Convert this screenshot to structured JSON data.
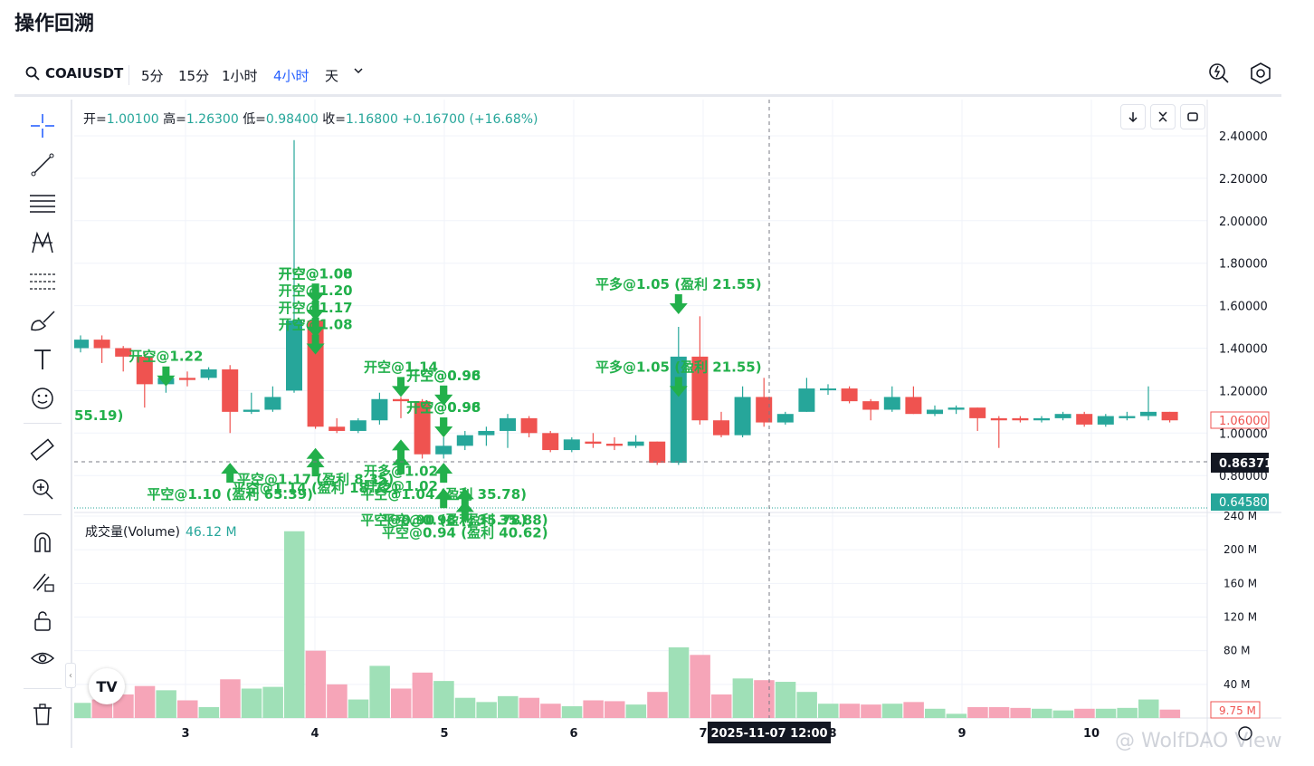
{
  "page_title": "操作回溯",
  "toolbar": {
    "symbol": "COAIUSDT",
    "timeframes": [
      "5分",
      "15分",
      "1小时",
      "4小时",
      "天"
    ],
    "active_timeframe": "4小时"
  },
  "legend": {
    "open_label": "开=",
    "open": "1.00100",
    "high_label": "高=",
    "high": "1.26300",
    "low_label": "低=",
    "low": "0.98400",
    "close_label": "收=",
    "close": "1.16800",
    "change": "+0.16700 (+16.68%)"
  },
  "volume_legend": {
    "label": "成交量(Volume)",
    "value": "46.12 M"
  },
  "price_scale": [
    "2.40000",
    "2.20000",
    "2.00000",
    "1.80000",
    "1.60000",
    "1.40000",
    "1.20000",
    "1.00000",
    "0.80000"
  ],
  "volume_scale": [
    "240 M",
    "200 M",
    "160 M",
    "120 M",
    "80 M",
    "40 M"
  ],
  "price_badges": {
    "last": "1.06000",
    "cursor": "0.86371",
    "low_line": "0.64580",
    "volume_last": "9.75 M"
  },
  "time_labels": [
    "3",
    "4",
    "5",
    "6",
    "7",
    "8",
    "9",
    "10"
  ],
  "cursor_time": "2025-11-07    12:00",
  "watermark": "@ WolfDAO View",
  "tv_logo": "TV",
  "colors": {
    "up": "#26a69a",
    "down": "#ef5350",
    "vol_up": "#9fe0b7",
    "vol_down": "#f6a5b8",
    "marker": "#22b04b",
    "accent": "#2962ff"
  },
  "chart_data": {
    "type": "candlestick",
    "candles": [
      {
        "o": 1.4,
        "h": 1.46,
        "l": 1.38,
        "c": 1.44,
        "v": 18
      },
      {
        "o": 1.44,
        "h": 1.46,
        "l": 1.33,
        "c": 1.4,
        "v": 22
      },
      {
        "o": 1.4,
        "h": 1.41,
        "l": 1.29,
        "c": 1.36,
        "v": 28
      },
      {
        "o": 1.36,
        "h": 1.38,
        "l": 1.12,
        "c": 1.23,
        "v": 38
      },
      {
        "o": 1.23,
        "h": 1.26,
        "l": 1.19,
        "c": 1.26,
        "v": 33
      },
      {
        "o": 1.26,
        "h": 1.29,
        "l": 1.22,
        "c": 1.25,
        "v": 21
      },
      {
        "o": 1.26,
        "h": 1.31,
        "l": 1.25,
        "c": 1.3,
        "v": 13
      },
      {
        "o": 1.3,
        "h": 1.32,
        "l": 1.0,
        "c": 1.1,
        "v": 46
      },
      {
        "o": 1.1,
        "h": 1.19,
        "l": 1.09,
        "c": 1.11,
        "v": 35
      },
      {
        "o": 1.11,
        "h": 1.22,
        "l": 1.1,
        "c": 1.17,
        "v": 37
      },
      {
        "o": 1.2,
        "h": 2.38,
        "l": 1.19,
        "c": 1.53,
        "v": 222
      },
      {
        "o": 1.53,
        "h": 1.55,
        "l": 1.02,
        "c": 1.03,
        "v": 80
      },
      {
        "o": 1.03,
        "h": 1.07,
        "l": 1.0,
        "c": 1.01,
        "v": 40
      },
      {
        "o": 1.01,
        "h": 1.07,
        "l": 1.0,
        "c": 1.06,
        "v": 22
      },
      {
        "o": 1.06,
        "h": 1.19,
        "l": 1.04,
        "c": 1.16,
        "v": 62
      },
      {
        "o": 1.16,
        "h": 1.17,
        "l": 1.07,
        "c": 1.15,
        "v": 35
      },
      {
        "o": 1.15,
        "h": 1.16,
        "l": 0.88,
        "c": 0.9,
        "v": 54
      },
      {
        "o": 0.9,
        "h": 0.98,
        "l": 0.88,
        "c": 0.94,
        "v": 44
      },
      {
        "o": 0.94,
        "h": 1.01,
        "l": 0.92,
        "c": 0.99,
        "v": 24
      },
      {
        "o": 0.99,
        "h": 1.03,
        "l": 0.94,
        "c": 1.01,
        "v": 19
      },
      {
        "o": 1.01,
        "h": 1.09,
        "l": 0.93,
        "c": 1.07,
        "v": 26
      },
      {
        "o": 1.07,
        "h": 1.08,
        "l": 0.98,
        "c": 1.0,
        "v": 24
      },
      {
        "o": 1.0,
        "h": 1.01,
        "l": 0.91,
        "c": 0.92,
        "v": 17
      },
      {
        "o": 0.92,
        "h": 0.98,
        "l": 0.91,
        "c": 0.97,
        "v": 14
      },
      {
        "o": 0.96,
        "h": 1.0,
        "l": 0.93,
        "c": 0.95,
        "v": 21
      },
      {
        "o": 0.95,
        "h": 0.98,
        "l": 0.92,
        "c": 0.94,
        "v": 20
      },
      {
        "o": 0.94,
        "h": 0.99,
        "l": 0.93,
        "c": 0.96,
        "v": 16
      },
      {
        "o": 0.96,
        "h": 0.96,
        "l": 0.85,
        "c": 0.86,
        "v": 31
      },
      {
        "o": 0.86,
        "h": 1.5,
        "l": 0.85,
        "c": 1.36,
        "v": 84
      },
      {
        "o": 1.36,
        "h": 1.55,
        "l": 1.04,
        "c": 1.06,
        "v": 75
      },
      {
        "o": 1.06,
        "h": 1.1,
        "l": 0.98,
        "c": 0.99,
        "v": 28
      },
      {
        "o": 0.99,
        "h": 1.22,
        "l": 0.98,
        "c": 1.17,
        "v": 47
      },
      {
        "o": 1.17,
        "h": 1.26,
        "l": 1.03,
        "c": 1.05,
        "v": 45
      },
      {
        "o": 1.05,
        "h": 1.1,
        "l": 1.04,
        "c": 1.09,
        "v": 43
      },
      {
        "o": 1.1,
        "h": 1.26,
        "l": 1.1,
        "c": 1.21,
        "v": 31
      },
      {
        "o": 1.21,
        "h": 1.23,
        "l": 1.18,
        "c": 1.21,
        "v": 17
      },
      {
        "o": 1.21,
        "h": 1.22,
        "l": 1.14,
        "c": 1.15,
        "v": 17
      },
      {
        "o": 1.15,
        "h": 1.16,
        "l": 1.06,
        "c": 1.11,
        "v": 16
      },
      {
        "o": 1.11,
        "h": 1.22,
        "l": 1.1,
        "c": 1.17,
        "v": 17
      },
      {
        "o": 1.17,
        "h": 1.22,
        "l": 1.09,
        "c": 1.09,
        "v": 19
      },
      {
        "o": 1.09,
        "h": 1.13,
        "l": 1.08,
        "c": 1.11,
        "v": 11
      },
      {
        "o": 1.11,
        "h": 1.13,
        "l": 1.09,
        "c": 1.12,
        "v": 5
      },
      {
        "o": 1.12,
        "h": 1.12,
        "l": 1.01,
        "c": 1.07,
        "v": 13
      },
      {
        "o": 1.07,
        "h": 1.08,
        "l": 0.93,
        "c": 1.06,
        "v": 13
      },
      {
        "o": 1.07,
        "h": 1.08,
        "l": 1.05,
        "c": 1.06,
        "v": 12
      },
      {
        "o": 1.06,
        "h": 1.08,
        "l": 1.05,
        "c": 1.07,
        "v": 11
      },
      {
        "o": 1.07,
        "h": 1.1,
        "l": 1.06,
        "c": 1.09,
        "v": 9
      },
      {
        "o": 1.09,
        "h": 1.1,
        "l": 1.03,
        "c": 1.04,
        "v": 11
      },
      {
        "o": 1.04,
        "h": 1.09,
        "l": 1.03,
        "c": 1.08,
        "v": 11
      },
      {
        "o": 1.07,
        "h": 1.1,
        "l": 1.06,
        "c": 1.08,
        "v": 12
      },
      {
        "o": 1.08,
        "h": 1.22,
        "l": 1.06,
        "c": 1.1,
        "v": 22
      },
      {
        "o": 1.1,
        "h": 1.1,
        "l": 1.05,
        "c": 1.06,
        "v": 10
      }
    ],
    "price_range": [
      0.6,
      2.45
    ],
    "volume_range": [
      0,
      240
    ],
    "markers": [
      {
        "text": "开空@1.22",
        "i": 4,
        "dir": "down",
        "y": 1.22
      },
      {
        "text": "开空@1.00",
        "i": 11,
        "dir": "down",
        "y": 1.61
      },
      {
        "text": "开空@1.08",
        "i": 11,
        "dir": "down",
        "y": 1.61
      },
      {
        "text": "开空@1.20",
        "i": 11,
        "dir": "down",
        "y": 1.53
      },
      {
        "text": "开空@1.17",
        "i": 11,
        "dir": "down",
        "y": 1.45
      },
      {
        "text": "开空@1.08",
        "i": 11,
        "dir": "down",
        "y": 1.37
      },
      {
        "text": "开空@1.14",
        "i": 15,
        "dir": "down",
        "y": 1.17
      },
      {
        "text": "开空@0.96",
        "i": 17,
        "dir": "down",
        "y": 1.13
      },
      {
        "text": "开空@0.98",
        "i": 17,
        "dir": "down",
        "y": 1.13
      },
      {
        "text": "开空@0.96",
        "i": 17,
        "dir": "down",
        "y": 0.98
      },
      {
        "text": "开空@0.98",
        "i": 17,
        "dir": "down",
        "y": 0.98
      },
      {
        "text": "开多@1.02",
        "i": 15,
        "dir": "up",
        "y": 0.97
      },
      {
        "text": "开多@1.02",
        "i": 15,
        "dir": "up",
        "y": 0.9
      },
      {
        "text": "平多@1.05 (盈利 21.55)",
        "i": 28,
        "dir": "down",
        "y": 1.56
      },
      {
        "text": "平多@1.05 (盈利 21.55)",
        "i": 28,
        "dir": "down",
        "y": 1.17
      },
      {
        "text": "平空@1.17 (盈利 8.35)",
        "i": 11,
        "dir": "up",
        "y": 0.93
      },
      {
        "text": "平空@1.14 (盈利 18.72)",
        "i": 11,
        "dir": "up",
        "y": 0.89
      },
      {
        "text": "平空@1.10 (盈利 65.39)",
        "i": 7,
        "dir": "up",
        "y": 0.86
      },
      {
        "text": "平空@1.04 (盈利 35.78)",
        "i": 17,
        "dir": "up",
        "y": 0.86
      },
      {
        "text": "平空@0.90 (盈利 35.78)",
        "i": 17,
        "dir": "up",
        "y": 0.74
      },
      {
        "text": "平空@0.98 (盈利 35.88)",
        "i": 18,
        "dir": "up",
        "y": 0.74
      },
      {
        "text": "平空@0.94 (盈利 40.62)",
        "i": 18,
        "dir": "up",
        "y": 0.68
      }
    ]
  }
}
